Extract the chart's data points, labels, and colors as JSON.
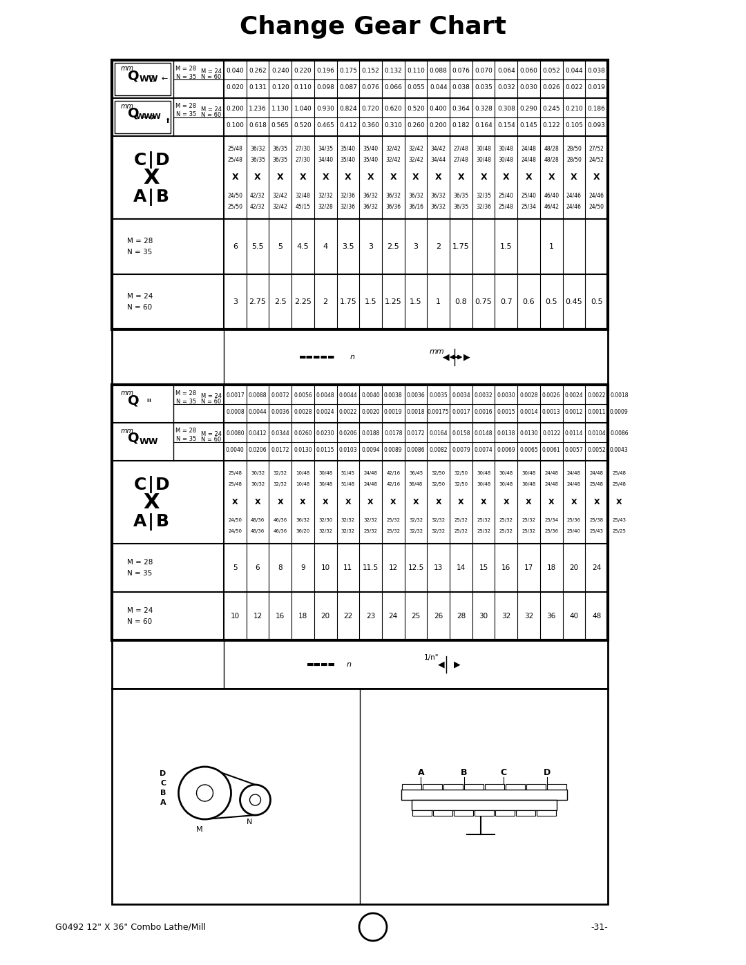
{
  "title": "Change Gear Chart",
  "footer_left": "G0492 12\" X 36\" Combo Lathe/Mill",
  "footer_right": "-31-",
  "upper_table": {
    "data_cols": [
      {
        "m24n60": "3",
        "m28n35": "6",
        "ab": "24/50\n25/50",
        "cd": "25/48\n25/48",
        "v1_m24": "0.100",
        "v1_m28": "0.200",
        "v2_m24": "0.020",
        "v2_m28": "0.040"
      },
      {
        "m24n60": "2.75",
        "m28n35": "5.5",
        "ab": "42/32\n42/32",
        "cd": "36/32\n36/35",
        "v1_m24": "0.618",
        "v1_m28": "1.236",
        "v2_m24": "0.131",
        "v2_m28": "0.262"
      },
      {
        "m24n60": "2.5",
        "m28n35": "5",
        "ab": "32/42\n32/42",
        "cd": "36/35\n36/35",
        "v1_m24": "0.565",
        "v1_m28": "1.130",
        "v2_m24": "0.120",
        "v2_m28": "0.240"
      },
      {
        "m24n60": "2.25",
        "m28n35": "4.5",
        "ab": "32/48\n45/15",
        "cd": "27/30\n27/30",
        "v1_m24": "0.520",
        "v1_m28": "1.040",
        "v2_m24": "0.110",
        "v2_m28": "0.220"
      },
      {
        "m24n60": "2",
        "m28n35": "4",
        "ab": "32/32\n32/28",
        "cd": "34/35\n34/40",
        "v1_m24": "0.465",
        "v1_m28": "0.930",
        "v2_m24": "0.098",
        "v2_m28": "0.196"
      },
      {
        "m24n60": "1.75",
        "m28n35": "3.5",
        "ab": "32/36\n32/36",
        "cd": "35/40\n35/40",
        "v1_m24": "0.412",
        "v1_m28": "0.824",
        "v2_m24": "0.087",
        "v2_m28": "0.175"
      },
      {
        "m24n60": "1.5",
        "m28n35": "3",
        "ab": "36/32\n36/32",
        "cd": "35/40\n35/40",
        "v1_m24": "0.360",
        "v1_m28": "0.720",
        "v2_m24": "0.076",
        "v2_m28": "0.152"
      },
      {
        "m24n60": "1.25",
        "m28n35": "2.5",
        "ab": "36/32\n36/36",
        "cd": "32/42\n32/42",
        "v1_m24": "0.310",
        "v1_m28": "0.620",
        "v2_m24": "0.066",
        "v2_m28": "0.132"
      },
      {
        "m24n60": "1.5",
        "m28n35": "3",
        "ab": "36/32\n36/16",
        "cd": "32/42\n32/42",
        "v1_m24": "0.260",
        "v1_m28": "0.520",
        "v2_m24": "0.055",
        "v2_m28": "0.110"
      },
      {
        "m24n60": "1",
        "m28n35": "2",
        "ab": "36/32\n36/32",
        "cd": "34/42\n34/44",
        "v1_m24": "0.200",
        "v1_m28": "0.400",
        "v2_m24": "0.044",
        "v2_m28": "0.088"
      },
      {
        "m24n60": "0.8",
        "m28n35": "1.75",
        "ab": "36/35\n36/35",
        "cd": "27/48\n27/48",
        "v1_m24": "0.182",
        "v1_m28": "0.364",
        "v2_m24": "0.038",
        "v2_m28": "0.076"
      },
      {
        "m24n60": "0.75",
        "m28n35": "",
        "ab": "32/35\n32/36",
        "cd": "30/48\n30/48",
        "v1_m24": "0.164",
        "v1_m28": "0.328",
        "v2_m24": "0.035",
        "v2_m28": "0.070"
      },
      {
        "m24n60": "0.7",
        "m28n35": "1.5",
        "ab": "25/40\n25/48",
        "cd": "30/48\n30/48",
        "v1_m24": "0.154",
        "v1_m28": "0.308",
        "v2_m24": "0.032",
        "v2_m28": "0.064"
      },
      {
        "m24n60": "0.6",
        "m28n35": "",
        "ab": "25/40\n25/34",
        "cd": "24/48\n24/48",
        "v1_m24": "0.145",
        "v1_m28": "0.290",
        "v2_m24": "0.030",
        "v2_m28": "0.060"
      },
      {
        "m24n60": "0.5",
        "m28n35": "1",
        "ab": "46/40\n46/42",
        "cd": "48/28\n48/28",
        "v1_m24": "0.122",
        "v1_m28": "0.245",
        "v2_m24": "0.026",
        "v2_m28": "0.052"
      },
      {
        "m24n60": "0.45",
        "m28n35": "",
        "ab": "24/46\n24/46",
        "cd": "28/50\n28/50",
        "v1_m24": "0.105",
        "v1_m28": "0.210",
        "v2_m24": "0.022",
        "v2_m28": "0.044"
      },
      {
        "m24n60": "0.5",
        "m28n35": "",
        "ab": "24/46\n24/50",
        "cd": "27/52\n24/52",
        "v1_m24": "0.093",
        "v1_m28": "0.186",
        "v2_m24": "0.019",
        "v2_m28": "0.038"
      }
    ]
  },
  "lower_table": {
    "data_cols": [
      {
        "m24n60": "10",
        "m28n35": "5",
        "ab": "24/50\n24/50",
        "cd": "25/48\n25/48",
        "v1_m24": "0.0040",
        "v1_m28": "0.0080",
        "v2_m24": "0.0008",
        "v2_m28": "0.0017"
      },
      {
        "m24n60": "12",
        "m28n35": "6",
        "ab": "48/36\n48/36",
        "cd": "30/32\n30/32",
        "v1_m24": "0.0206",
        "v1_m28": "0.0412",
        "v2_m24": "0.0044",
        "v2_m28": "0.0088"
      },
      {
        "m24n60": "16",
        "m28n35": "8",
        "ab": "46/36\n46/36",
        "cd": "32/32\n32/32",
        "v1_m24": "0.0172",
        "v1_m28": "0.0344",
        "v2_m24": "0.0036",
        "v2_m28": "0.0072"
      },
      {
        "m24n60": "18",
        "m28n35": "9",
        "ab": "36/32\n36/20",
        "cd": "10/48\n10/48",
        "v1_m24": "0.0130",
        "v1_m28": "0.0260",
        "v2_m24": "0.0028",
        "v2_m28": "0.0056"
      },
      {
        "m24n60": "20",
        "m28n35": "10",
        "ab": "32/30\n32/32",
        "cd": "30/48\n30/48",
        "v1_m24": "0.0115",
        "v1_m28": "0.0230",
        "v2_m24": "0.0024",
        "v2_m28": "0.0048"
      },
      {
        "m24n60": "22",
        "m28n35": "11",
        "ab": "32/32\n32/32",
        "cd": "51/45\n51/48",
        "v1_m24": "0.0103",
        "v1_m28": "0.0206",
        "v2_m24": "0.0022",
        "v2_m28": "0.0044"
      },
      {
        "m24n60": "23",
        "m28n35": "11.5",
        "ab": "32/32\n25/32",
        "cd": "24/48\n24/48",
        "v1_m24": "0.0094",
        "v1_m28": "0.0188",
        "v2_m24": "0.0020",
        "v2_m28": "0.0040"
      },
      {
        "m24n60": "24",
        "m28n35": "12",
        "ab": "25/32\n25/32",
        "cd": "42/16\n42/16",
        "v1_m24": "0.0089",
        "v1_m28": "0.0178",
        "v2_m24": "0.0019",
        "v2_m28": "0.0038"
      },
      {
        "m24n60": "25",
        "m28n35": "12.5",
        "ab": "32/32\n32/32",
        "cd": "36/45\n36/48",
        "v1_m24": "0.0086",
        "v1_m28": "0.0172",
        "v2_m24": "0.0018",
        "v2_m28": "0.0036"
      },
      {
        "m24n60": "26",
        "m28n35": "13",
        "ab": "32/32\n32/32",
        "cd": "32/50\n32/50",
        "v1_m24": "0.0082",
        "v1_m28": "0.0164",
        "v2_m24": "0.00175",
        "v2_m28": "0.0035"
      },
      {
        "m24n60": "28",
        "m28n35": "14",
        "ab": "25/32\n25/32",
        "cd": "32/50\n32/50",
        "v1_m24": "0.0079",
        "v1_m28": "0.0158",
        "v2_m24": "0.0017",
        "v2_m28": "0.0034"
      },
      {
        "m24n60": "30",
        "m28n35": "15",
        "ab": "25/32\n25/32",
        "cd": "30/48\n30/48",
        "v1_m24": "0.0074",
        "v1_m28": "0.0148",
        "v2_m24": "0.0016",
        "v2_m28": "0.0032"
      },
      {
        "m24n60": "32",
        "m28n35": "16",
        "ab": "25/32\n25/32",
        "cd": "30/48\n30/48",
        "v1_m24": "0.0069",
        "v1_m28": "0.0138",
        "v2_m24": "0.0015",
        "v2_m28": "0.0030"
      },
      {
        "m24n60": "32",
        "m28n35": "17",
        "ab": "25/32\n25/32",
        "cd": "30/48\n30/48",
        "v1_m24": "0.0065",
        "v1_m28": "0.0130",
        "v2_m24": "0.0014",
        "v2_m28": "0.0028"
      },
      {
        "m24n60": "36",
        "m28n35": "18",
        "ab": "25/34\n25/36",
        "cd": "24/48\n24/48",
        "v1_m24": "0.0061",
        "v1_m28": "0.0122",
        "v2_m24": "0.0013",
        "v2_m28": "0.0026"
      },
      {
        "m24n60": "40",
        "m28n35": "20",
        "ab": "25/36\n25/40",
        "cd": "24/48\n24/48",
        "v1_m24": "0.0057",
        "v1_m28": "0.0114",
        "v2_m24": "0.0012",
        "v2_m28": "0.0024"
      },
      {
        "m24n60": "48",
        "m28n35": "24",
        "ab": "25/38\n25/43",
        "cd": "24/48\n25/48",
        "v1_m24": "0.0052",
        "v1_m28": "0.0104",
        "v2_m24": "0.0011",
        "v2_m28": "0.0022"
      },
      {
        "m24n60": "",
        "m28n35": "",
        "ab": "25/43\n25/25",
        "cd": "25/48\n25/48",
        "v1_m24": "0.0043",
        "v1_m28": "0.0086",
        "v2_m24": "0.0009",
        "v2_m28": "0.0018"
      }
    ]
  }
}
